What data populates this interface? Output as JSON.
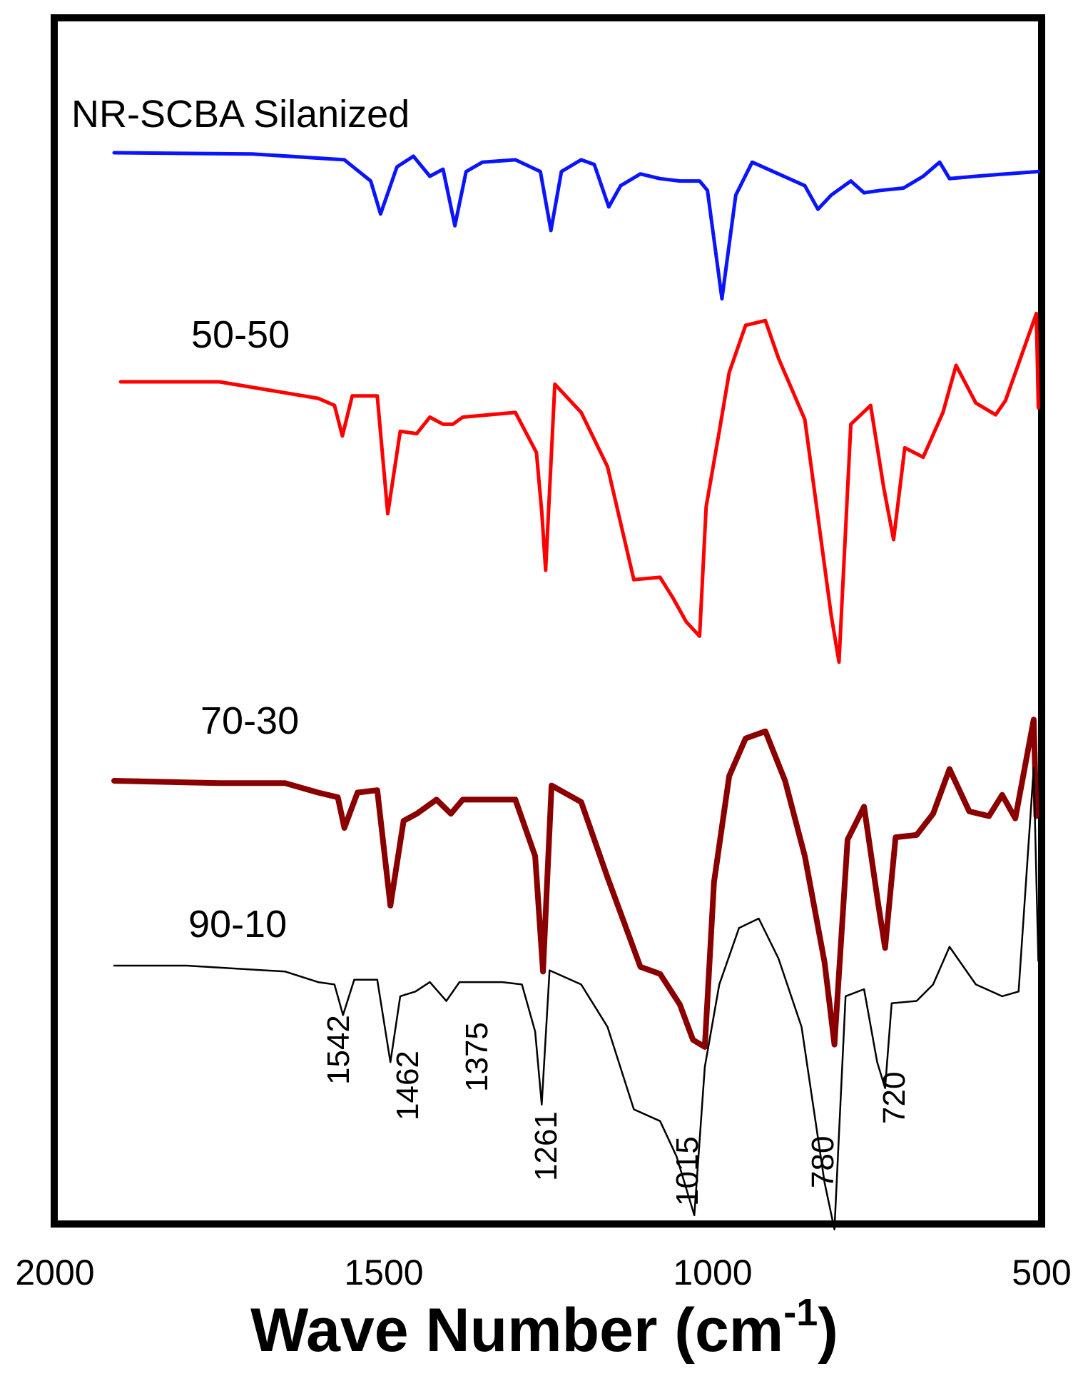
{
  "chart_data": {
    "type": "line",
    "xlabel": "Wave Number (cm",
    "xlabel_sup": "-1",
    "xlabel_close": ")",
    "xlim": [
      2000,
      500
    ],
    "x_ticks": [
      2000,
      1500,
      1000,
      500
    ],
    "grid": false,
    "series": [
      {
        "name": "NR-SCBA Silanized",
        "color": "#0a14ff",
        "points": [
          [
            1910,
            0
          ],
          [
            1700,
            -0.1
          ],
          [
            1560,
            -0.6
          ],
          [
            1520,
            -2.4
          ],
          [
            1505,
            -5.2
          ],
          [
            1480,
            -1.2
          ],
          [
            1455,
            -0.3
          ],
          [
            1430,
            -2
          ],
          [
            1410,
            -1.4
          ],
          [
            1392,
            -6.2
          ],
          [
            1375,
            -1.6
          ],
          [
            1350,
            -0.8
          ],
          [
            1300,
            -0.6
          ],
          [
            1262,
            -1.6
          ],
          [
            1246,
            -6.6
          ],
          [
            1230,
            -1.6
          ],
          [
            1200,
            -0.6
          ],
          [
            1180,
            -1
          ],
          [
            1158,
            -4.6
          ],
          [
            1140,
            -2.8
          ],
          [
            1110,
            -1.8
          ],
          [
            1080,
            -2.2
          ],
          [
            1050,
            -2.4
          ],
          [
            1020,
            -2.4
          ],
          [
            1008,
            -3.2
          ],
          [
            986,
            -12.4
          ],
          [
            965,
            -3.6
          ],
          [
            940,
            -0.8
          ],
          [
            900,
            -1.8
          ],
          [
            860,
            -2.8
          ],
          [
            840,
            -4.8
          ],
          [
            820,
            -3.6
          ],
          [
            790,
            -2.4
          ],
          [
            770,
            -3.4
          ],
          [
            745,
            -3.2
          ],
          [
            710,
            -3
          ],
          [
            680,
            -2
          ],
          [
            655,
            -0.8
          ],
          [
            640,
            -2.2
          ],
          [
            600,
            -2
          ],
          [
            555,
            -1.8
          ],
          [
            505,
            -1.6
          ]
        ]
      },
      {
        "name": "50-50",
        "color": "#ff0000",
        "points": [
          [
            1900,
            0
          ],
          [
            1750,
            0
          ],
          [
            1600,
            -1.4
          ],
          [
            1575,
            -2
          ],
          [
            1563,
            -4.6
          ],
          [
            1548,
            -1.2
          ],
          [
            1510,
            -1.2
          ],
          [
            1494,
            -11.2
          ],
          [
            1475,
            -4.2
          ],
          [
            1450,
            -4.4
          ],
          [
            1430,
            -3
          ],
          [
            1410,
            -3.6
          ],
          [
            1395,
            -3.6
          ],
          [
            1380,
            -3
          ],
          [
            1300,
            -2.6
          ],
          [
            1268,
            -6
          ],
          [
            1260,
            -11
          ],
          [
            1254,
            -16
          ],
          [
            1240,
            -0.2
          ],
          [
            1200,
            -2.6
          ],
          [
            1160,
            -7.2
          ],
          [
            1120,
            -16.8
          ],
          [
            1080,
            -16.6
          ],
          [
            1060,
            -18.4
          ],
          [
            1040,
            -20.4
          ],
          [
            1020,
            -21.6
          ],
          [
            1010,
            -10.6
          ],
          [
            990,
            -4.2
          ],
          [
            975,
            0.8
          ],
          [
            950,
            4.8
          ],
          [
            920,
            5.2
          ],
          [
            900,
            2
          ],
          [
            860,
            -3.2
          ],
          [
            820,
            -19.8
          ],
          [
            808,
            -23.8
          ],
          [
            790,
            -3.6
          ],
          [
            760,
            -2
          ],
          [
            740,
            -9
          ],
          [
            725,
            -13.4
          ],
          [
            708,
            -5.6
          ],
          [
            680,
            -6.4
          ],
          [
            650,
            -2.6
          ],
          [
            630,
            1.4
          ],
          [
            600,
            -1.8
          ],
          [
            570,
            -2.8
          ],
          [
            555,
            -1.6
          ],
          [
            508,
            5.8
          ],
          [
            505,
            -2.2
          ]
        ]
      },
      {
        "name": "70-30",
        "color": "#8a0000",
        "width": 8,
        "points": [
          [
            1910,
            0
          ],
          [
            1750,
            -0.2
          ],
          [
            1650,
            -0.2
          ],
          [
            1600,
            -1
          ],
          [
            1570,
            -1.4
          ],
          [
            1560,
            -4
          ],
          [
            1540,
            -1
          ],
          [
            1510,
            -0.8
          ],
          [
            1490,
            -10.6
          ],
          [
            1470,
            -3.4
          ],
          [
            1450,
            -2.8
          ],
          [
            1420,
            -1.6
          ],
          [
            1398,
            -2.8
          ],
          [
            1380,
            -1.6
          ],
          [
            1300,
            -1.6
          ],
          [
            1270,
            -6.4
          ],
          [
            1258,
            -16.2
          ],
          [
            1245,
            -0.4
          ],
          [
            1200,
            -1.8
          ],
          [
            1160,
            -8.2
          ],
          [
            1110,
            -15.8
          ],
          [
            1080,
            -16.4
          ],
          [
            1050,
            -19
          ],
          [
            1030,
            -22
          ],
          [
            1012,
            -22.6
          ],
          [
            998,
            -8.6
          ],
          [
            975,
            0.4
          ],
          [
            950,
            3.6
          ],
          [
            920,
            4.2
          ],
          [
            890,
            0
          ],
          [
            860,
            -6.4
          ],
          [
            830,
            -15.4
          ],
          [
            815,
            -22.4
          ],
          [
            795,
            -5
          ],
          [
            770,
            -2.2
          ],
          [
            748,
            -10.6
          ],
          [
            738,
            -14.2
          ],
          [
            722,
            -4.8
          ],
          [
            690,
            -4.6
          ],
          [
            665,
            -2.8
          ],
          [
            640,
            1
          ],
          [
            610,
            -2.6
          ],
          [
            580,
            -3
          ],
          [
            560,
            -1.2
          ],
          [
            540,
            -3.2
          ],
          [
            512,
            5.2
          ],
          [
            508,
            -3
          ]
        ]
      },
      {
        "name": "90-10",
        "color": "#000000",
        "points": [
          [
            1910,
            0
          ],
          [
            1800,
            0
          ],
          [
            1650,
            -0.5
          ],
          [
            1600,
            -1.4
          ],
          [
            1575,
            -1.6
          ],
          [
            1562,
            -4.2
          ],
          [
            1545,
            -1.2
          ],
          [
            1510,
            -1.2
          ],
          [
            1490,
            -8.2
          ],
          [
            1475,
            -2.6
          ],
          [
            1452,
            -2.2
          ],
          [
            1430,
            -1.4
          ],
          [
            1405,
            -3
          ],
          [
            1385,
            -1.4
          ],
          [
            1320,
            -1.4
          ],
          [
            1290,
            -1.6
          ],
          [
            1270,
            -5.6
          ],
          [
            1260,
            -11.8
          ],
          [
            1248,
            -0.4
          ],
          [
            1200,
            -1.6
          ],
          [
            1160,
            -5.2
          ],
          [
            1120,
            -12.2
          ],
          [
            1080,
            -13.2
          ],
          [
            1055,
            -16.2
          ],
          [
            1028,
            -21.2
          ],
          [
            1012,
            -8.6
          ],
          [
            990,
            -1.6
          ],
          [
            960,
            3.2
          ],
          [
            930,
            4
          ],
          [
            900,
            0.6
          ],
          [
            865,
            -5.2
          ],
          [
            830,
            -18.4
          ],
          [
            815,
            -22.4
          ],
          [
            798,
            -2.6
          ],
          [
            770,
            -2
          ],
          [
            750,
            -8.2
          ],
          [
            738,
            -10.4
          ],
          [
            728,
            -3.2
          ],
          [
            690,
            -3
          ],
          [
            665,
            -1.6
          ],
          [
            640,
            1.6
          ],
          [
            600,
            -1.6
          ],
          [
            560,
            -2.6
          ],
          [
            535,
            -2.2
          ],
          [
            512,
            16.8
          ],
          [
            505,
            0.4
          ]
        ]
      }
    ],
    "peak_labels": [
      "1542",
      "1462",
      "1375",
      "1261",
      "1015",
      "780",
      "720"
    ]
  }
}
